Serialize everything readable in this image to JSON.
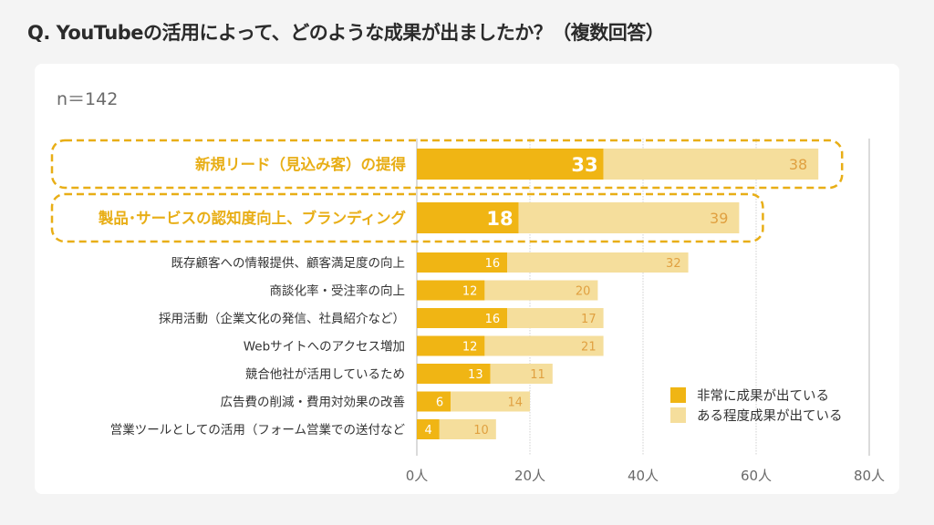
{
  "header": {
    "title": "Q. YouTubeの活用によって、どのような成果が出ましたか？（複数回答）"
  },
  "sample_size": "n＝142",
  "colors": {
    "strong": "#f0b514",
    "light": "#f5de9c",
    "highlight_text": "#e8ae16",
    "light_value_text": "#e0a040"
  },
  "chart_data": {
    "type": "bar",
    "orientation": "horizontal",
    "stacked": true,
    "title": "Q. YouTubeの活用によって、どのような成果が出ましたか？（複数回答）",
    "subtitle": "n＝142",
    "xlabel": "",
    "ylabel": "",
    "xlim": [
      0,
      80
    ],
    "xticks": [
      0,
      20,
      40,
      60,
      80
    ],
    "tick_labels": [
      "0人",
      "20人",
      "40人",
      "60人",
      "80人"
    ],
    "grid": true,
    "legend_position": "bottom-right",
    "categories": [
      "新規リード（見込み客）の提得",
      "製品･サービスの認知度向上、ブランディング",
      "既存顧客への情報提供、顧客満足度の向上",
      "商談化率・受注率の向上",
      "採用活動（企業文化の発信、社員紹介など）",
      "Webサイトへのアクセス増加",
      "競合他社が活用しているため",
      "広告費の削減・費用対効果の改善",
      "営業ツールとしての活用（フォーム営業での送付など"
    ],
    "highlighted": [
      true,
      true,
      false,
      false,
      false,
      false,
      false,
      false,
      false
    ],
    "series": [
      {
        "name": "非常に成果が出ている",
        "values": [
          33,
          18,
          16,
          12,
          16,
          12,
          13,
          6,
          4
        ]
      },
      {
        "name": "ある程度成果が出ている",
        "values": [
          38,
          39,
          32,
          20,
          17,
          21,
          11,
          14,
          10
        ]
      }
    ]
  }
}
